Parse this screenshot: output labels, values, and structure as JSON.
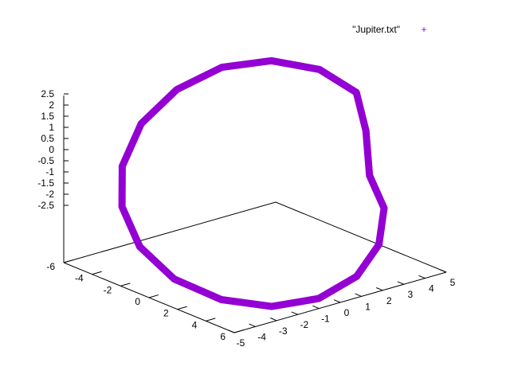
{
  "chart_data": {
    "type": "scatter",
    "projection": "3d",
    "series": [
      {
        "name": "\"Jupiter.txt\"",
        "marker": "+",
        "color": "#9400d3",
        "shape": "closed elliptical orbit",
        "points": [
          {
            "x": 5.0,
            "y": 0.6,
            "z": -0.55
          },
          {
            "x": 4.55,
            "y": 2.3,
            "z": -1.15
          },
          {
            "x": 3.3,
            "y": 3.8,
            "z": -1.75
          },
          {
            "x": 1.55,
            "y": 4.85,
            "z": -2.2
          },
          {
            "x": -0.45,
            "y": 5.15,
            "z": -2.45
          },
          {
            "x": -2.3,
            "y": 4.6,
            "z": -2.45
          },
          {
            "x": -3.8,
            "y": 3.3,
            "z": -2.2
          },
          {
            "x": -4.85,
            "y": 1.55,
            "z": -1.7
          },
          {
            "x": -5.2,
            "y": -0.35,
            "z": -1.0
          },
          {
            "x": -4.8,
            "y": -2.2,
            "z": -0.2
          },
          {
            "x": -3.75,
            "y": -3.75,
            "z": 0.55
          },
          {
            "x": -2.15,
            "y": -4.8,
            "z": 1.35
          },
          {
            "x": -0.2,
            "y": -5.2,
            "z": 1.95
          },
          {
            "x": 1.65,
            "y": -4.8,
            "z": 2.35
          },
          {
            "x": 3.25,
            "y": -3.7,
            "z": 2.45
          },
          {
            "x": 4.45,
            "y": -2.1,
            "z": 2.25
          },
          {
            "x": 5.05,
            "y": -0.4,
            "z": 1.75
          },
          {
            "x": 5.1,
            "y": 0.2,
            "z": 0.7
          }
        ]
      }
    ],
    "xaxis": {
      "range": [
        -5,
        5
      ],
      "ticks": [
        "-5",
        "-4",
        "-3",
        "-2",
        "-1",
        "0",
        "1",
        "2",
        "3",
        "4",
        "5"
      ]
    },
    "yaxis": {
      "range": [
        -6,
        6
      ],
      "ticks": [
        "-6",
        "-4",
        "-2",
        "0",
        "2",
        "4",
        "6"
      ]
    },
    "zaxis": {
      "range": [
        -2.5,
        2.5
      ],
      "ticks": [
        "2.5",
        "2",
        "1.5",
        "1",
        "0.5",
        "0",
        "-0.5",
        "-1",
        "-1.5",
        "-2",
        "-2.5"
      ]
    },
    "grid": false,
    "legend": {
      "position": "top-right",
      "label": "\"Jupiter.txt\"",
      "marker": "+"
    }
  }
}
